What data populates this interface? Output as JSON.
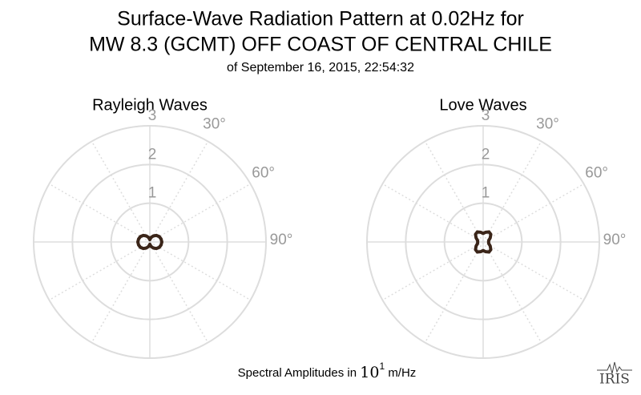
{
  "title_lines": [
    "Surface-Wave Radiation Pattern at 0.02Hz for",
    "MW 8.3 (GCMT) OFF COAST OF CENTRAL CHILE"
  ],
  "subtitle": "of September 16, 2015, 22:54:32",
  "caption": {
    "text": "Spectral Amplitudes in",
    "base": "10",
    "exponent": "1",
    "unit": "m/Hz"
  },
  "logo": "IRIS",
  "chart_data": [
    {
      "type": "polar",
      "title": "Rayleigh Waves",
      "color": "#3a2418",
      "grid": true,
      "theta": [
        0,
        15,
        30,
        45,
        60,
        75,
        90,
        105,
        120,
        135,
        150,
        165,
        180,
        195,
        210,
        225,
        240,
        255,
        270,
        285,
        300,
        315,
        330,
        345
      ],
      "r": [
        0.06,
        0.12,
        0.18,
        0.24,
        0.28,
        0.3,
        0.31,
        0.3,
        0.28,
        0.24,
        0.18,
        0.12,
        0.06,
        0.12,
        0.18,
        0.24,
        0.28,
        0.3,
        0.31,
        0.3,
        0.28,
        0.24,
        0.18,
        0.12
      ],
      "rlim": [
        0,
        3
      ],
      "rticks": [
        1,
        2,
        3
      ],
      "thetagrid": [
        0,
        30,
        60,
        90,
        120,
        150,
        180,
        210,
        240,
        270,
        300,
        330
      ],
      "thetaticks": [
        {
          "value": 30,
          "label": "30°"
        },
        {
          "value": 60,
          "label": "60°"
        },
        {
          "value": 90,
          "label": "90°"
        }
      ]
    },
    {
      "type": "polar",
      "title": "Love Waves",
      "color": "#3a2418",
      "grid": true,
      "theta": [
        0,
        15,
        30,
        45,
        60,
        75,
        90,
        105,
        120,
        135,
        150,
        165,
        180,
        195,
        210,
        225,
        240,
        255,
        270,
        285,
        300,
        315,
        330,
        345
      ],
      "r": [
        0.22,
        0.26,
        0.3,
        0.28,
        0.21,
        0.15,
        0.14,
        0.15,
        0.21,
        0.28,
        0.3,
        0.26,
        0.22,
        0.26,
        0.3,
        0.28,
        0.21,
        0.15,
        0.14,
        0.15,
        0.21,
        0.28,
        0.3,
        0.26
      ],
      "rlim": [
        0,
        3
      ],
      "rticks": [
        1,
        2,
        3
      ],
      "thetagrid": [
        0,
        30,
        60,
        90,
        120,
        150,
        180,
        210,
        240,
        270,
        300,
        330
      ],
      "thetaticks": [
        {
          "value": 30,
          "label": "30°"
        },
        {
          "value": 60,
          "label": "60°"
        },
        {
          "value": 90,
          "label": "90°"
        }
      ]
    }
  ]
}
